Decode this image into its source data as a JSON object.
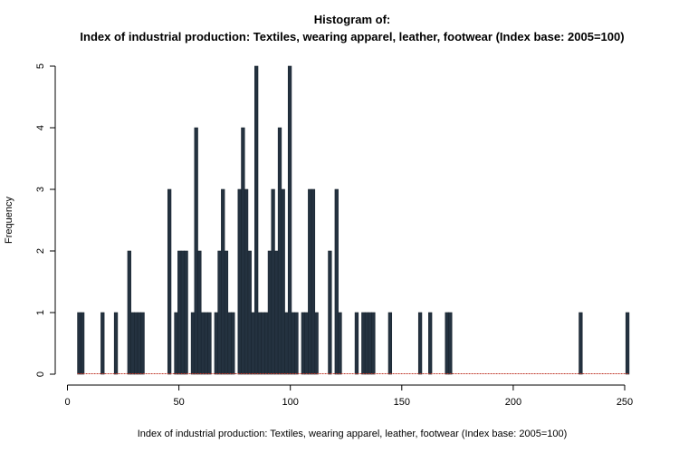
{
  "colors": {
    "bar_fill": "#243240",
    "bar_stroke": "#1a2530",
    "baseline": "#c0392b",
    "axis": "#000000"
  },
  "chart_data": {
    "type": "bar",
    "title": "Histogram of:",
    "subtitle": "Index of industrial production: Textiles, wearing apparel, leather, footwear (Index base: 2005=100)",
    "xlabel": "Index of industrial production: Textiles, wearing apparel, leather, footwear (Index base: 2005=100)",
    "ylabel": "Frequency",
    "xlim": [
      0,
      252
    ],
    "ylim": [
      0,
      5
    ],
    "bin_width": 1.5,
    "x_ticks": [
      0,
      50,
      100,
      150,
      200,
      250
    ],
    "x_tick_labels": [
      "0",
      "50",
      "100",
      "150",
      "200",
      "250"
    ],
    "y_ticks": [
      0,
      1,
      2,
      3,
      4,
      5
    ],
    "y_tick_labels": [
      "0",
      "1",
      "2",
      "3",
      "4",
      "5"
    ],
    "grid": false,
    "legend": "none",
    "bins": [
      {
        "x": 4.5,
        "count": 1
      },
      {
        "x": 6.0,
        "count": 1
      },
      {
        "x": 15.0,
        "count": 1
      },
      {
        "x": 21.0,
        "count": 1
      },
      {
        "x": 27.0,
        "count": 2
      },
      {
        "x": 28.5,
        "count": 1
      },
      {
        "x": 30.0,
        "count": 1
      },
      {
        "x": 31.5,
        "count": 1
      },
      {
        "x": 33.0,
        "count": 1
      },
      {
        "x": 45.0,
        "count": 3
      },
      {
        "x": 48.0,
        "count": 1
      },
      {
        "x": 49.5,
        "count": 2
      },
      {
        "x": 51.0,
        "count": 2
      },
      {
        "x": 52.5,
        "count": 2
      },
      {
        "x": 55.5,
        "count": 1
      },
      {
        "x": 57.0,
        "count": 4
      },
      {
        "x": 58.5,
        "count": 2
      },
      {
        "x": 60.0,
        "count": 1
      },
      {
        "x": 61.5,
        "count": 1
      },
      {
        "x": 63.0,
        "count": 1
      },
      {
        "x": 66.0,
        "count": 1
      },
      {
        "x": 67.5,
        "count": 2
      },
      {
        "x": 69.0,
        "count": 3
      },
      {
        "x": 70.5,
        "count": 2
      },
      {
        "x": 72.0,
        "count": 1
      },
      {
        "x": 73.5,
        "count": 1
      },
      {
        "x": 76.5,
        "count": 3
      },
      {
        "x": 78.0,
        "count": 4
      },
      {
        "x": 79.5,
        "count": 3
      },
      {
        "x": 81.0,
        "count": 2
      },
      {
        "x": 82.5,
        "count": 1
      },
      {
        "x": 84.0,
        "count": 5
      },
      {
        "x": 85.5,
        "count": 1
      },
      {
        "x": 87.0,
        "count": 1
      },
      {
        "x": 88.5,
        "count": 1
      },
      {
        "x": 90.0,
        "count": 2
      },
      {
        "x": 91.5,
        "count": 3
      },
      {
        "x": 93.0,
        "count": 2
      },
      {
        "x": 94.5,
        "count": 4
      },
      {
        "x": 96.0,
        "count": 3
      },
      {
        "x": 97.5,
        "count": 1
      },
      {
        "x": 99.0,
        "count": 5
      },
      {
        "x": 100.5,
        "count": 1
      },
      {
        "x": 102.0,
        "count": 1
      },
      {
        "x": 105.0,
        "count": 1
      },
      {
        "x": 106.5,
        "count": 1
      },
      {
        "x": 108.0,
        "count": 3
      },
      {
        "x": 109.5,
        "count": 3
      },
      {
        "x": 111.0,
        "count": 1
      },
      {
        "x": 117.0,
        "count": 2
      },
      {
        "x": 120.0,
        "count": 3
      },
      {
        "x": 121.5,
        "count": 1
      },
      {
        "x": 129.0,
        "count": 1
      },
      {
        "x": 132.0,
        "count": 1
      },
      {
        "x": 133.5,
        "count": 1
      },
      {
        "x": 135.0,
        "count": 1
      },
      {
        "x": 136.5,
        "count": 1
      },
      {
        "x": 144.0,
        "count": 1
      },
      {
        "x": 157.5,
        "count": 1
      },
      {
        "x": 162.0,
        "count": 1
      },
      {
        "x": 169.5,
        "count": 1
      },
      {
        "x": 171.0,
        "count": 1
      },
      {
        "x": 229.5,
        "count": 1
      },
      {
        "x": 250.5,
        "count": 1
      }
    ]
  }
}
